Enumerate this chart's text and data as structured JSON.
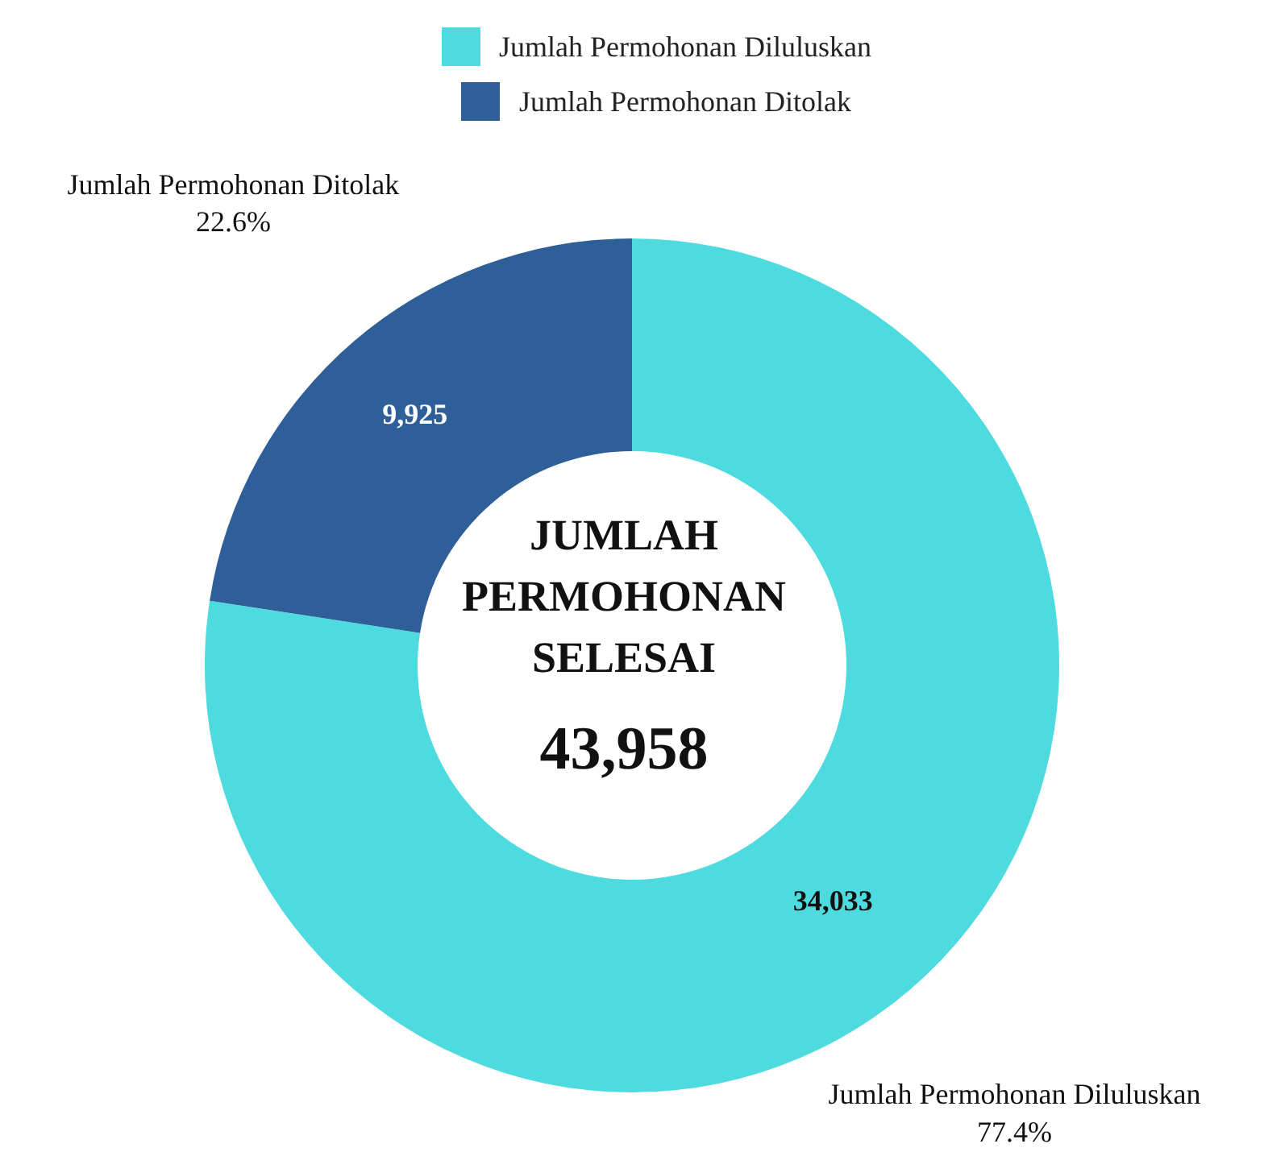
{
  "chart_data": {
    "type": "donut",
    "title": "JUMLAH PERMOHONAN SELESAI",
    "categories": [
      "Jumlah Permohonan Diluluskan",
      "Jumlah Permohonan Ditolak"
    ],
    "values": [
      34033,
      9925
    ],
    "colors": [
      "#4ddbe0",
      "#2e5f98"
    ],
    "value_labels": [
      "34,033",
      "9,925"
    ],
    "legend": "top",
    "annotations": [
      "43,958",
      {
        "text": "77.4%",
        "x": "Jumlah Permohonan Diluluskan"
      },
      {
        "text": "22.6%",
        "x": "Jumlah Permohonan Ditolak"
      }
    ]
  }
}
